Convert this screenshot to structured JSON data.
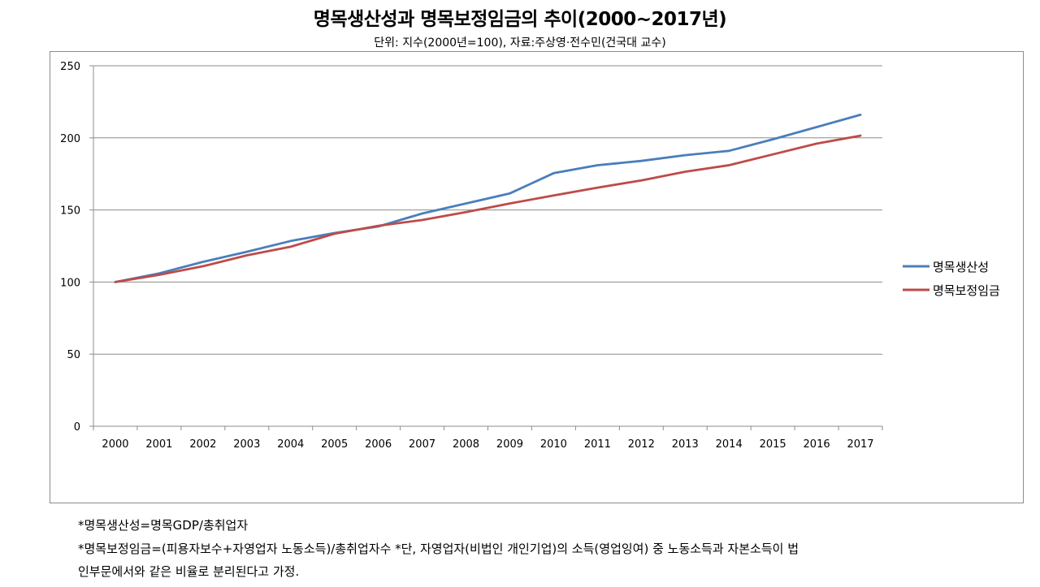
{
  "title": "명목생산성과 명목보정임금의 추이(2000~2017년)",
  "subtitle": "단위: 지수(2000년=100), 자료:주상영·전수민(건국대 교수)",
  "notes": [
    "*명목생산성=명목GDP/총취업자",
    "*명목보정임금=(피용자보수+자영업자 노동소득)/총취업자수 *단, 자영업자(비법인 개인기업)의 소득(영업잉여) 중 노동소득과 자본소득이 법",
    "인부문에서와 같은 비율로 분리된다고 가정."
  ],
  "chart_data": {
    "type": "line",
    "categories": [
      "2000",
      "2001",
      "2002",
      "2003",
      "2004",
      "2005",
      "2006",
      "2007",
      "2008",
      "2009",
      "2010",
      "2011",
      "2012",
      "2013",
      "2014",
      "2015",
      "2016",
      "2017"
    ],
    "y_ticks": [
      "0",
      "50",
      "100",
      "150",
      "200",
      "250"
    ],
    "ylim": [
      0,
      250
    ],
    "grid": true,
    "legend_position": "right",
    "series": [
      {
        "name": "명목생산성",
        "color": "#4a7ebb",
        "values": [
          100,
          106,
          114,
          121,
          128.5,
          134,
          138.5,
          147.5,
          154.5,
          161.5,
          175.5,
          181,
          184,
          188,
          191,
          199,
          207.5,
          216
        ]
      },
      {
        "name": "명목보정임금",
        "color": "#be4b48",
        "values": [
          100,
          105,
          111,
          118.5,
          124.5,
          133.5,
          139,
          143,
          148.5,
          154.5,
          160,
          165.5,
          170.5,
          176.5,
          181,
          188.5,
          196,
          201.5
        ]
      }
    ]
  }
}
